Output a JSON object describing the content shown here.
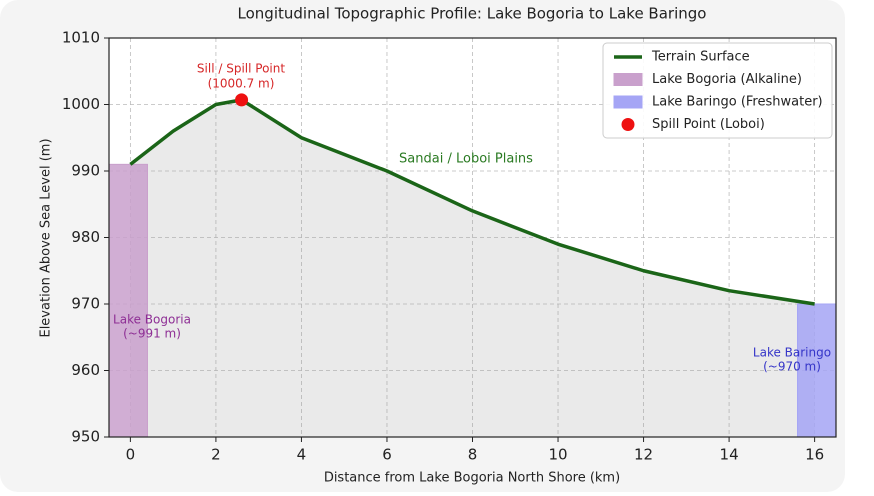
{
  "chart_data": {
    "type": "line",
    "title": "Longitudinal Topographic Profile: Lake Bogoria to Lake Baringo",
    "xlabel": "Distance from Lake Bogoria North Shore (km)",
    "ylabel": "Elevation Above Sea Level (m)",
    "xlim": [
      -0.5,
      16.5
    ],
    "ylim": [
      950,
      1010
    ],
    "xticks": [
      0,
      2,
      4,
      6,
      8,
      10,
      12,
      14,
      16
    ],
    "yticks": [
      950,
      960,
      970,
      980,
      990,
      1000,
      1010
    ],
    "grid": true,
    "legend": "upper right",
    "series": [
      {
        "name": "Terrain Surface",
        "color": "#1b6518",
        "x": [
          0,
          1,
          2,
          2.6,
          4,
          6,
          8,
          10,
          12,
          14,
          16
        ],
        "values": [
          991,
          996,
          1000,
          1000.7,
          995,
          990,
          984,
          979,
          975,
          972,
          970
        ]
      }
    ],
    "lakes": [
      {
        "name": "Lake Bogoria (Alkaline)",
        "color": "#c9a0cc",
        "x": [
          -0.5,
          0.4
        ],
        "value": 991
      },
      {
        "name": "Lake Baringo (Freshwater)",
        "color": "#a5a5f5",
        "x": [
          15.6,
          16.5
        ],
        "value": 970
      }
    ],
    "spill_point": {
      "name": "Spill Point (Loboi)",
      "color": "#ee1111",
      "x": 2.6,
      "value": 1000.7
    },
    "annotations": [
      {
        "lines": [
          "Sill / Spill Point",
          "(1000.7 m)"
        ],
        "color": "#d62728"
      },
      {
        "lines": [
          "Sandai / Loboi Plains"
        ],
        "color": "#2a7a22"
      },
      {
        "lines": [
          "Lake Bogoria",
          "(~991 m)"
        ],
        "color": "#8e2f95"
      },
      {
        "lines": [
          "Lake Baringo",
          "(~970 m)"
        ],
        "color": "#3535c8"
      }
    ]
  }
}
